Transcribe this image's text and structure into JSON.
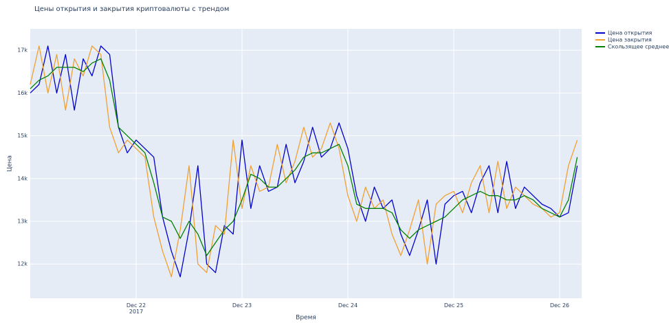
{
  "chart_data": {
    "type": "line",
    "title": "Цены открытия и закрытия криптовалюты с трендом",
    "x_label": "Время",
    "y_label": "Цена",
    "x": [
      "2017-12-21T00:00",
      "2017-12-21T02:00",
      "2017-12-21T04:00",
      "2017-12-21T06:00",
      "2017-12-21T08:00",
      "2017-12-21T10:00",
      "2017-12-21T12:00",
      "2017-12-21T14:00",
      "2017-12-21T16:00",
      "2017-12-21T18:00",
      "2017-12-21T20:00",
      "2017-12-21T22:00",
      "2017-12-22T00:00",
      "2017-12-22T02:00",
      "2017-12-22T04:00",
      "2017-12-22T06:00",
      "2017-12-22T08:00",
      "2017-12-22T10:00",
      "2017-12-22T12:00",
      "2017-12-22T14:00",
      "2017-12-22T16:00",
      "2017-12-22T18:00",
      "2017-12-22T20:00",
      "2017-12-22T22:00",
      "2017-12-23T00:00",
      "2017-12-23T02:00",
      "2017-12-23T04:00",
      "2017-12-23T06:00",
      "2017-12-23T08:00",
      "2017-12-23T10:00",
      "2017-12-23T12:00",
      "2017-12-23T14:00",
      "2017-12-23T16:00",
      "2017-12-23T18:00",
      "2017-12-23T20:00",
      "2017-12-23T22:00",
      "2017-12-24T00:00",
      "2017-12-24T02:00",
      "2017-12-24T04:00",
      "2017-12-24T06:00",
      "2017-12-24T08:00",
      "2017-12-24T10:00",
      "2017-12-24T12:00",
      "2017-12-24T14:00",
      "2017-12-24T16:00",
      "2017-12-24T18:00",
      "2017-12-24T20:00",
      "2017-12-24T22:00",
      "2017-12-25T00:00",
      "2017-12-25T02:00",
      "2017-12-25T04:00",
      "2017-12-25T06:00",
      "2017-12-25T08:00",
      "2017-12-25T10:00",
      "2017-12-25T12:00",
      "2017-12-25T14:00",
      "2017-12-25T16:00",
      "2017-12-25T18:00",
      "2017-12-25T20:00",
      "2017-12-25T22:00",
      "2017-12-26T00:00",
      "2017-12-26T02:00",
      "2017-12-26T04:00"
    ],
    "series": [
      {
        "name": "Цена открытия",
        "color": "#0000cc",
        "values": [
          16000,
          16200,
          17100,
          16000,
          16900,
          15600,
          16800,
          16400,
          17100,
          16900,
          15200,
          14600,
          14900,
          14700,
          14500,
          13100,
          12300,
          11700,
          12800,
          14300,
          12000,
          11800,
          12900,
          12700,
          14900,
          13300,
          14300,
          13700,
          13800,
          14800,
          13900,
          14400,
          15200,
          14500,
          14700,
          15300,
          14700,
          13600,
          13000,
          13800,
          13300,
          13500,
          12700,
          12200,
          12800,
          13500,
          12000,
          13400,
          13600,
          13700,
          13200,
          13900,
          14300,
          13200,
          14400,
          13300,
          13800,
          13600,
          13400,
          13300,
          13100,
          13200,
          14300
        ]
      },
      {
        "name": "Цена закрытия",
        "color": "#f0a030",
        "values": [
          16200,
          17100,
          16000,
          16900,
          15600,
          16800,
          16400,
          17100,
          16900,
          15200,
          14600,
          14900,
          14700,
          14500,
          13100,
          12300,
          11700,
          12800,
          14300,
          12000,
          11800,
          12900,
          12700,
          14900,
          13300,
          14300,
          13700,
          13800,
          14800,
          13900,
          14400,
          15200,
          14500,
          14700,
          15300,
          14700,
          13600,
          13000,
          13800,
          13300,
          13500,
          12700,
          12200,
          12800,
          13500,
          12000,
          13400,
          13600,
          13700,
          13200,
          13900,
          14300,
          13200,
          14400,
          13300,
          13800,
          13600,
          13400,
          13300,
          13100,
          13200,
          14300,
          14900
        ]
      },
      {
        "name": "Скользящее среднее (20)",
        "color": "#008000",
        "values": [
          16100,
          16300,
          16400,
          16600,
          16600,
          16600,
          16500,
          16700,
          16800,
          16300,
          15200,
          15000,
          14800,
          14600,
          13900,
          13100,
          13000,
          12600,
          13000,
          12700,
          12200,
          12500,
          12800,
          13000,
          13500,
          14100,
          14000,
          13800,
          13800,
          14000,
          14200,
          14500,
          14600,
          14600,
          14700,
          14800,
          14300,
          13400,
          13300,
          13300,
          13300,
          13200,
          12800,
          12600,
          12800,
          12900,
          13000,
          13100,
          13300,
          13500,
          13600,
          13700,
          13600,
          13600,
          13500,
          13500,
          13600,
          13500,
          13300,
          13200,
          13100,
          13500,
          14500
        ]
      }
    ],
    "xlim": [
      "2017-12-21T00:00",
      "2017-12-26T05:00"
    ],
    "xticks": [
      {
        "value": "2017-12-22T00:00",
        "label": "Dec 22\n2017"
      },
      {
        "value": "2017-12-23T00:00",
        "label": "Dec 23"
      },
      {
        "value": "2017-12-24T00:00",
        "label": "Dec 24"
      },
      {
        "value": "2017-12-25T00:00",
        "label": "Dec 25"
      },
      {
        "value": "2017-12-26T00:00",
        "label": "Dec 26"
      }
    ],
    "ylim": [
      11200,
      17500
    ],
    "yticks": [
      {
        "value": 12000,
        "label": "12k"
      },
      {
        "value": 13000,
        "label": "13k"
      },
      {
        "value": 14000,
        "label": "14k"
      },
      {
        "value": 15000,
        "label": "15k"
      },
      {
        "value": 16000,
        "label": "16k"
      },
      {
        "value": 17000,
        "label": "17k"
      }
    ],
    "grid": true,
    "legend": "outside-top-right"
  }
}
